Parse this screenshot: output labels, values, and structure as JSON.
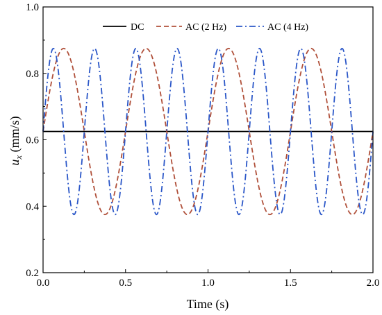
{
  "chart_data": {
    "type": "line",
    "title": "",
    "xlabel": "Time (s)",
    "ylabel_symbol": "u",
    "ylabel_subscript": "x",
    "ylabel_unit": " (mm/s)",
    "xlim": [
      0.0,
      2.0
    ],
    "ylim": [
      0.2,
      1.0
    ],
    "xticks": [
      "0.0",
      "0.5",
      "1.0",
      "1.5",
      "2.0"
    ],
    "yticks": [
      "0.2",
      "0.4",
      "0.6",
      "0.8",
      "1.0"
    ],
    "grid": false,
    "legend_position": "top",
    "series": [
      {
        "name": "DC",
        "kind": "constant",
        "value": 0.625,
        "color": "#000000",
        "style": "solid"
      },
      {
        "name": "AC (2 Hz)",
        "kind": "sine",
        "offset": 0.625,
        "amplitude": 0.25,
        "frequency_hz": 2,
        "phase_shift_s": 0.0,
        "color": "#b0503a",
        "style": "dashed"
      },
      {
        "name": "AC (4 Hz)",
        "kind": "sine",
        "offset": 0.625,
        "amplitude": 0.25,
        "frequency_hz": 4,
        "phase_shift_s": 0.0,
        "color": "#2b57c8",
        "style": "dash-dot"
      }
    ],
    "line_styles": {
      "solid": "none",
      "dashed": "7 4",
      "dash-dot": "9 4 2 4"
    }
  }
}
